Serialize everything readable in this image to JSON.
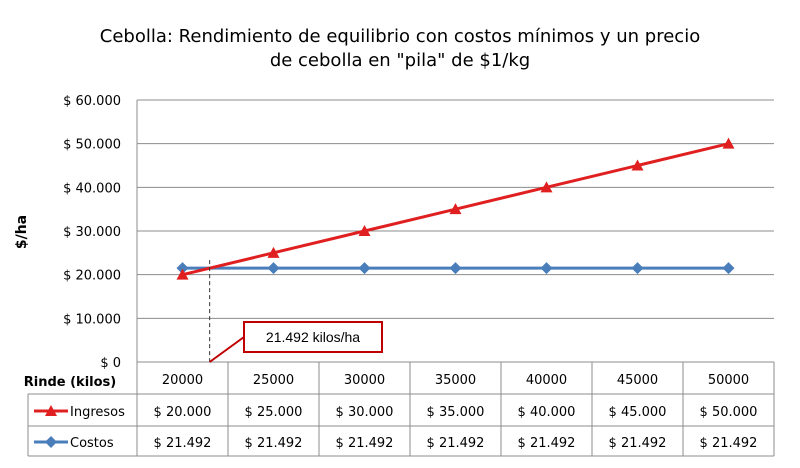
{
  "chart_data": {
    "type": "line",
    "title_line1": "Cebolla: Rendimiento de equilibrio con costos mínimos y un precio",
    "title_line2": "de cebolla en \"pila\" de $1/kg",
    "ylabel": "$/ha",
    "xlabel": "Rinde (kilos)",
    "categories": [
      "20000",
      "25000",
      "30000",
      "35000",
      "40000",
      "45000",
      "50000"
    ],
    "ylim": [
      0,
      60000
    ],
    "yticks": [
      0,
      10000,
      20000,
      30000,
      40000,
      50000,
      60000
    ],
    "ytick_labels": [
      "$ 0",
      "$ 10.000",
      "$ 20.000",
      "$ 30.000",
      "$ 40.000",
      "$ 50.000",
      "$ 60.000"
    ],
    "grid": "horizontal",
    "legend": "data-table",
    "series": [
      {
        "name": "Ingresos",
        "color": "#e02020",
        "marker": "triangle",
        "values": [
          20000,
          25000,
          30000,
          35000,
          40000,
          45000,
          50000
        ],
        "labels": [
          "$ 20.000",
          "$ 25.000",
          "$ 30.000",
          "$ 35.000",
          "$ 40.000",
          "$ 45.000",
          "$ 50.000"
        ]
      },
      {
        "name": "Costos",
        "color": "#4a7ebb",
        "marker": "diamond",
        "values": [
          21492,
          21492,
          21492,
          21492,
          21492,
          21492,
          21492
        ],
        "labels": [
          "$ 21.492",
          "$ 21.492",
          "$ 21.492",
          "$ 21.492",
          "$ 21.492",
          "$ 21.492",
          "$ 21.492"
        ]
      }
    ],
    "annotation": {
      "text": "21.492 kilos/ha",
      "x_value": 21492,
      "border_color": "#c00000"
    }
  }
}
